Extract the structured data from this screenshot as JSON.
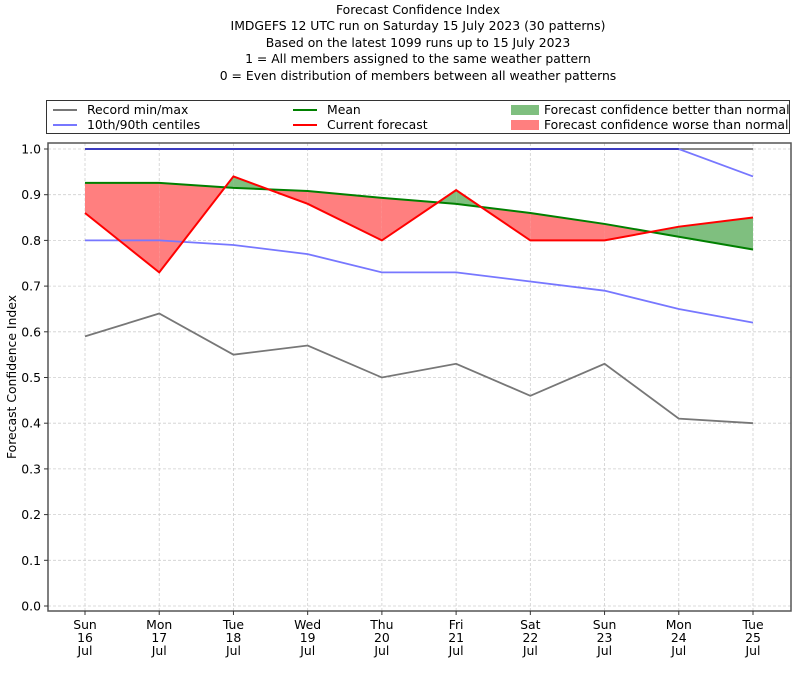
{
  "chart_data": {
    "type": "line",
    "title": "Forecast Confidence Index",
    "subtitle_lines": [
      "IMDGEFS 12 UTC run on Saturday 15 July 2023 (30 patterns)",
      "Based on the latest 1099 runs up to 15 July 2023",
      "1 = All members assigned to the same weather pattern",
      "0 = Even distribution of members between all weather patterns"
    ],
    "xlabel": "",
    "ylabel": "Forecast Confidence Index",
    "ylim": [
      0.0,
      1.0
    ],
    "yticks": [
      "0.0",
      "0.1",
      "0.2",
      "0.3",
      "0.4",
      "0.5",
      "0.6",
      "0.7",
      "0.8",
      "0.9",
      "1.0"
    ],
    "ytick_values": [
      0.0,
      0.1,
      0.2,
      0.3,
      0.4,
      0.5,
      0.6,
      0.7,
      0.8,
      0.9,
      1.0
    ],
    "categories": [
      [
        "Sun",
        "16",
        "Jul"
      ],
      [
        "Mon",
        "17",
        "Jul"
      ],
      [
        "Tue",
        "18",
        "Jul"
      ],
      [
        "Wed",
        "19",
        "Jul"
      ],
      [
        "Thu",
        "20",
        "Jul"
      ],
      [
        "Fri",
        "21",
        "Jul"
      ],
      [
        "Sat",
        "22",
        "Jul"
      ],
      [
        "Sun",
        "23",
        "Jul"
      ],
      [
        "Mon",
        "24",
        "Jul"
      ],
      [
        "Tue",
        "25",
        "Jul"
      ]
    ],
    "grid": true,
    "legend_position": "top (above plot, full width)",
    "series": [
      {
        "name": "Record max",
        "legend_group": "Record min/max",
        "color": "#777777",
        "values": [
          1.0,
          1.0,
          1.0,
          1.0,
          1.0,
          1.0,
          1.0,
          1.0,
          1.0,
          1.0
        ]
      },
      {
        "name": "Record min",
        "legend_group": "Record min/max",
        "color": "#777777",
        "values": [
          0.59,
          0.64,
          0.55,
          0.57,
          0.5,
          0.53,
          0.46,
          0.53,
          0.41,
          0.4
        ]
      },
      {
        "name": "90th centile",
        "legend_group": "10th/90th centiles",
        "color": "#7777ff",
        "values": [
          1.0,
          1.0,
          1.0,
          1.0,
          1.0,
          1.0,
          1.0,
          1.0,
          1.0,
          0.94
        ]
      },
      {
        "name": "10th centile",
        "legend_group": "10th/90th centiles",
        "color": "#7777ff",
        "values": [
          0.8,
          0.8,
          0.79,
          0.77,
          0.73,
          0.73,
          0.71,
          0.69,
          0.65,
          0.62
        ]
      },
      {
        "name": "Mean",
        "color": "#008000",
        "values": [
          0.926,
          0.926,
          0.915,
          0.908,
          0.893,
          0.88,
          0.86,
          0.836,
          0.808,
          0.78
        ]
      },
      {
        "name": "Current forecast",
        "color": "#ff0000",
        "values": [
          0.86,
          0.73,
          0.94,
          0.88,
          0.8,
          0.91,
          0.8,
          0.8,
          0.83,
          0.85
        ]
      }
    ],
    "fills": [
      {
        "name": "Forecast confidence better than normal",
        "color": "#7fbf7f",
        "condition": "current > mean"
      },
      {
        "name": "Forecast confidence worse than normal",
        "color": "#ff7f7f",
        "condition": "current < mean"
      }
    ]
  },
  "legend": {
    "items": [
      {
        "label": "Record min/max",
        "color": "#777777",
        "kind": "line"
      },
      {
        "label": "10th/90th centiles",
        "color": "#7777ff",
        "kind": "line"
      },
      {
        "label": "Mean",
        "color": "#008000",
        "kind": "line"
      },
      {
        "label": "Current forecast",
        "color": "#ff0000",
        "kind": "line"
      },
      {
        "label": "Forecast confidence better than normal",
        "color": "#7fbf7f",
        "kind": "patch"
      },
      {
        "label": "Forecast confidence worse than normal",
        "color": "#ff7f7f",
        "kind": "patch"
      }
    ]
  }
}
